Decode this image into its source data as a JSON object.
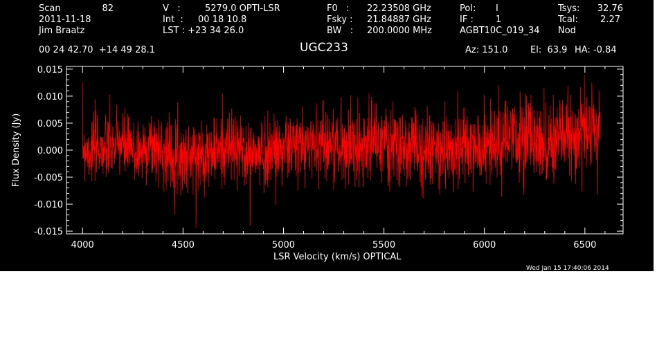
{
  "header": {
    "scan_label": "Scan",
    "scan_value": "82",
    "date": "2011-11-18",
    "observer": "Jim Braatz",
    "v_label": "V   :",
    "v_value": "5279.0 OPTI-LSR",
    "int_label": "Int  :",
    "int_value": "00 18 10.8",
    "lst_label": "LST : +23 34 26.0",
    "f0_label": "F0   :",
    "f0_value": "22.23508 GHz",
    "fsky_label": "Fsky :",
    "fsky_value": "21.84887 GHz",
    "bw_label": "BW   :",
    "bw_value": "200.0000 MHz",
    "pol_label": "Pol:",
    "pol_value": "I",
    "if_label": "IF :",
    "if_value": "1",
    "project": "AGBT10C_019_34",
    "tsys_label": "Tsys:",
    "tsys_value": "32.76",
    "tcal_label": "Tcal:",
    "tcal_value": "2.27",
    "mode": "Nod",
    "coords": "00 24 42.70  +14 49 28.1",
    "source": "UGC233",
    "az": "Az: 151.0",
    "el": "El:  63.9",
    "ha": "HA: -0.84",
    "timestamp": "Wed Jan 15 17:40:06 2014"
  },
  "colors": {
    "background": "#000000",
    "axes": "#ffffff",
    "trace": "#ff0000"
  },
  "chart_data": {
    "type": "line",
    "xlabel": "LSR Velocity (km/s) OPTICAL",
    "ylabel": "Flux Density (Jy)",
    "xlim": [
      3920,
      6690
    ],
    "ylim": [
      -0.0155,
      0.0155
    ],
    "xticks": [
      4000,
      4500,
      5000,
      5500,
      6000,
      6500
    ],
    "xtick_labels": [
      "4000",
      "4500",
      "5000",
      "5500",
      "6000",
      "6500"
    ],
    "yticks": [
      -0.015,
      -0.01,
      -0.005,
      0.0,
      0.005,
      0.01,
      0.015
    ],
    "ytick_labels": [
      "-0.015",
      "-0.010",
      "-0.005",
      "0.000",
      "0.005",
      "0.010",
      "0.015"
    ],
    "series": [
      {
        "x_start": 4000,
        "x_end": 6575,
        "noise_rms_approx": 0.003,
        "values": [
          0.0008,
          -0.0004,
          0.001,
          -0.0002,
          0.0005,
          0.0012,
          0.0004,
          -0.0006,
          0.0,
          0.0008,
          0.0004,
          -0.0002,
          -0.001,
          -0.0008,
          -0.0014,
          -0.001,
          -0.0004,
          -0.0006,
          -0.0002,
          0.0006,
          0.0004,
          0.0,
          -0.0008,
          -0.001,
          -0.0006,
          0.0,
          0.0004,
          0.0002,
          0.0008,
          0.0006,
          0.001,
          0.0014,
          0.0016,
          0.0012,
          0.0008,
          0.0004,
          0.0006,
          0.001,
          0.0014,
          0.0018,
          0.0012,
          0.0006,
          0.0002,
          0.0,
          0.0004,
          0.0006,
          0.0002,
          -0.0004,
          -0.0002,
          0.0002,
          0.0008,
          0.0004,
          0.0,
          0.0002,
          0.0006,
          0.001,
          0.0014,
          0.0016,
          0.002,
          0.0024,
          0.0022,
          0.0018,
          0.0014,
          0.0018,
          0.0022,
          0.0026,
          0.003,
          0.0034,
          0.0038,
          0.0036
        ]
      }
    ]
  }
}
